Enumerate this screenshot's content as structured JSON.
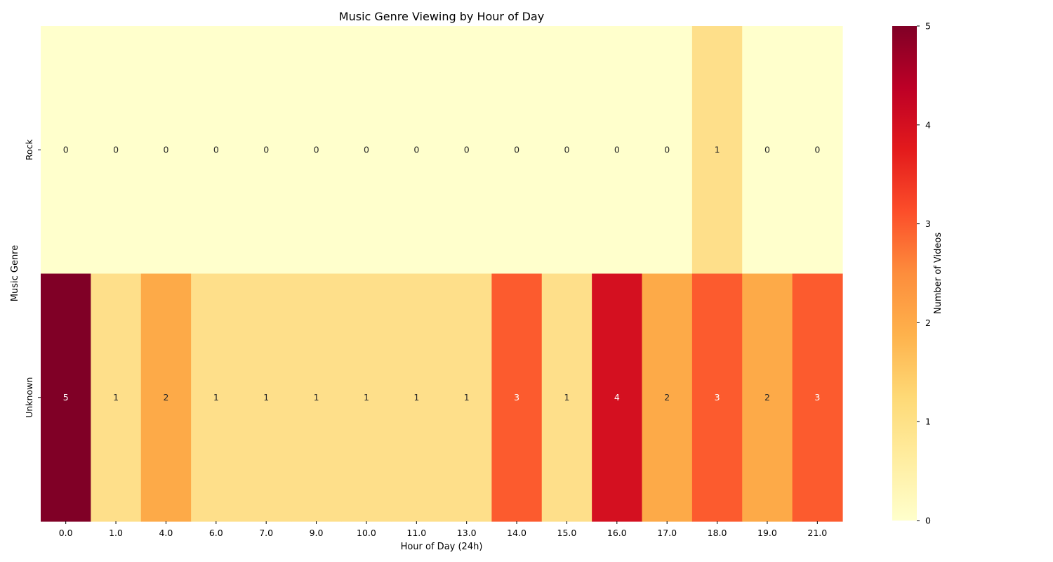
{
  "chart_data": {
    "type": "heatmap",
    "title": "Music Genre Viewing by Hour of Day",
    "xlabel": "Hour of Day (24h)",
    "ylabel": "Music Genre",
    "colorbar_label": "Number of Videos",
    "x_categories": [
      "0.0",
      "1.0",
      "4.0",
      "6.0",
      "7.0",
      "9.0",
      "10.0",
      "11.0",
      "13.0",
      "14.0",
      "15.0",
      "16.0",
      "17.0",
      "18.0",
      "19.0",
      "21.0"
    ],
    "y_categories": [
      "Rock",
      "Unknown"
    ],
    "values": [
      [
        0,
        0,
        0,
        0,
        0,
        0,
        0,
        0,
        0,
        0,
        0,
        0,
        0,
        1,
        0,
        0
      ],
      [
        5,
        1,
        2,
        1,
        1,
        1,
        1,
        1,
        1,
        3,
        1,
        4,
        2,
        3,
        2,
        3
      ]
    ],
    "colorbar_range": [
      0,
      5
    ],
    "colorbar_ticks": [
      "0",
      "1",
      "2",
      "3",
      "4",
      "5"
    ],
    "colormap": "YlOrRd",
    "colors": {
      "0": "#ffffcc",
      "1": "#fedf8a",
      "2": "#fdaa48",
      "3": "#fc5b2e",
      "4": "#d41020",
      "5": "#800026"
    },
    "annotations": true
  }
}
